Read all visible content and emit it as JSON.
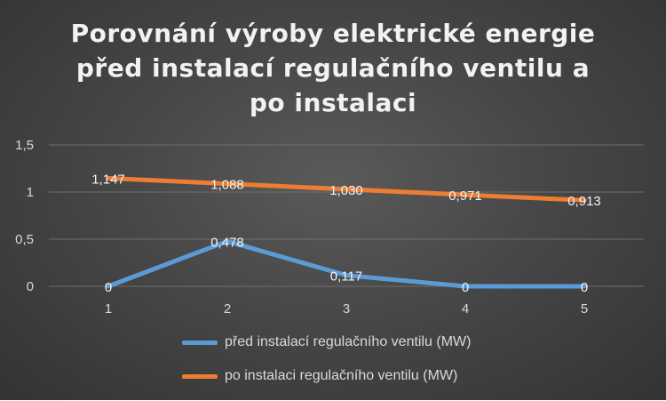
{
  "chart_data": {
    "type": "line",
    "title_lines": [
      "Porovnání výroby elektrické energie",
      "před instalací regulačního ventilu a",
      "po instalaci"
    ],
    "categories": [
      "1",
      "2",
      "3",
      "4",
      "5"
    ],
    "y_ticks": [
      "0",
      "0,5",
      "1",
      "1,5"
    ],
    "ylim": [
      0,
      1.5
    ],
    "grid": "horizontal",
    "legend": "bottom",
    "series": [
      {
        "name": "před instalací regulačního ventilu (MW)",
        "values": [
          0,
          0.478,
          0.117,
          0,
          0
        ],
        "labels": [
          "0",
          "0,478",
          "0,117",
          "0",
          "0"
        ],
        "color": "#5b9bd5"
      },
      {
        "name": "po instalaci regulačního ventilu (MW)",
        "values": [
          1.147,
          1.088,
          1.03,
          0.971,
          0.913
        ],
        "labels": [
          "1,147",
          "1,088",
          "1,030",
          "0,971",
          "0,913"
        ],
        "color": "#ed7d31"
      }
    ]
  }
}
